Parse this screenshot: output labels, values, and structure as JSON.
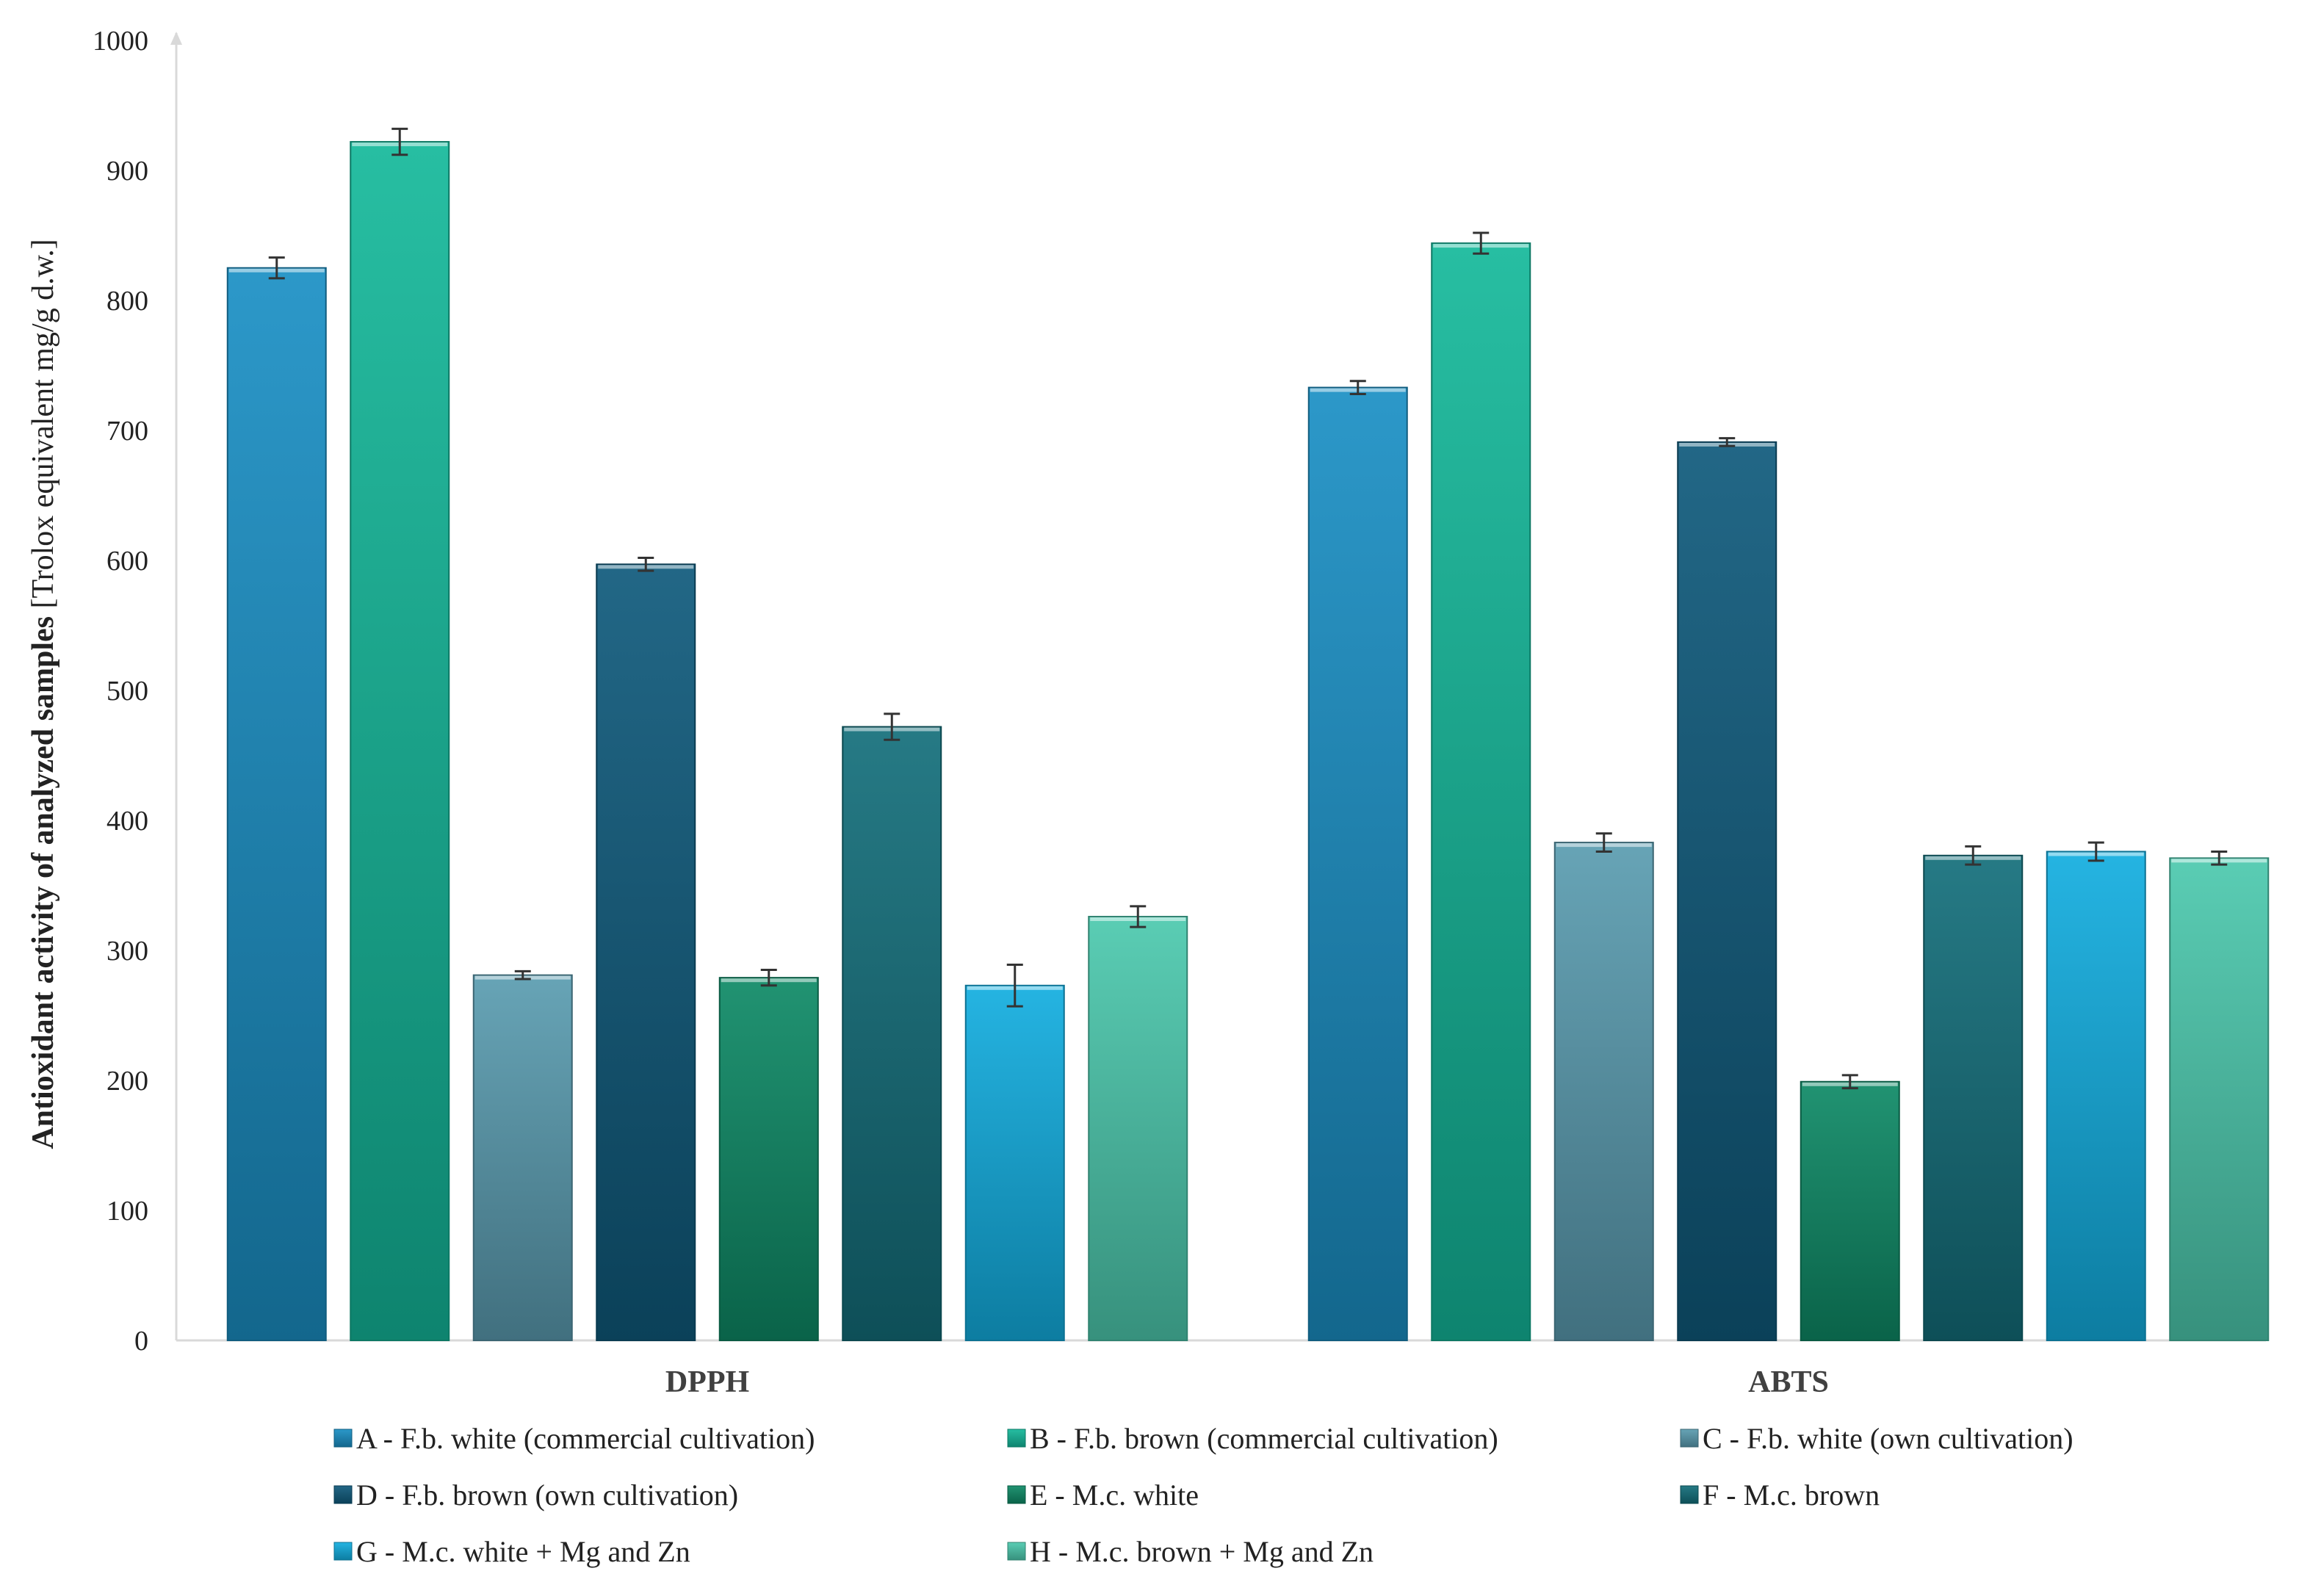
{
  "chart_data": {
    "type": "bar",
    "title": "",
    "xlabel": "",
    "ylabel": "Antioxidant activity of analyzed samples",
    "ylabel_unit": "[Trolox equivalent mg/g d.w.]",
    "ylim": [
      0,
      1000
    ],
    "yticks": [
      0,
      100,
      200,
      300,
      400,
      500,
      600,
      700,
      800,
      900,
      1000
    ],
    "categories": [
      "DPPH",
      "ABTS"
    ],
    "series": [
      {
        "name": "A - F.b. white (commercial cultivation)",
        "color": "#1a8fc4",
        "values": [
          825,
          733
        ],
        "errors": [
          8,
          5
        ]
      },
      {
        "name": "B - F.b. brown (commercial cultivation)",
        "color": "#14b89a",
        "values": [
          922,
          844
        ],
        "errors": [
          10,
          8
        ]
      },
      {
        "name": "C - F.b. white (own cultivation)",
        "color": "#5a9cb0",
        "values": [
          281,
          383
        ],
        "errors": [
          3,
          7
        ]
      },
      {
        "name": "D - F.b. brown (own cultivation)",
        "color": "#0f5a7c",
        "values": [
          597,
          691
        ],
        "errors": [
          5,
          3
        ]
      },
      {
        "name": "E - M.c. white",
        "color": "#0e8a66",
        "values": [
          279,
          199
        ],
        "errors": [
          6,
          5
        ]
      },
      {
        "name": "F - M.c. brown",
        "color": "#136e7a",
        "values": [
          472,
          373
        ],
        "errors": [
          10,
          7
        ]
      },
      {
        "name": "G - M.c. white + Mg and Zn",
        "color": "#12aee0",
        "values": [
          273,
          376
        ],
        "errors": [
          16,
          7
        ]
      },
      {
        "name": "H - M.c. brown + Mg and Zn",
        "color": "#4cc9ae",
        "values": [
          326,
          371
        ],
        "errors": [
          8,
          5
        ]
      }
    ],
    "legend_position": "bottom",
    "grid": false
  }
}
